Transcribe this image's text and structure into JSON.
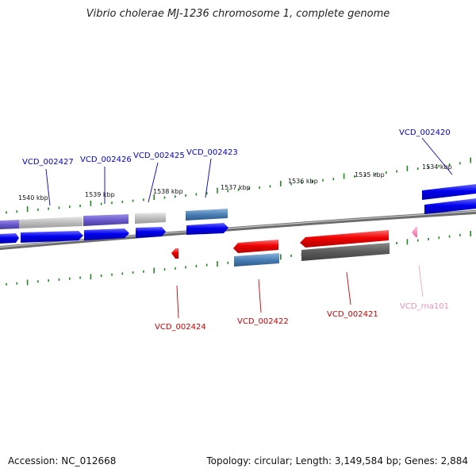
{
  "title": "Vibrio cholerae MJ-1236 chromosome 1, complete genome",
  "footer": {
    "accession": "Accession: NC_012668",
    "stats": "Topology: circular; Length: 3,149,584 bp; Genes: 2,884"
  },
  "tick_labels": [
    "1540 kbp",
    "1539 kbp",
    "1538 kbp",
    "1537 kbp",
    "1536 kbp",
    "1535 kbp",
    "1534 kbp"
  ],
  "gene_labels": {
    "top": [
      "VCD_002427",
      "VCD_002426",
      "VCD_002425",
      "VCD_002423",
      "VCD_002420"
    ],
    "bottom": [
      "VCD_002424",
      "VCD_002422",
      "VCD_002421",
      "VCD_rna101"
    ]
  },
  "colors": {
    "forward_cds": "#0000ee",
    "reverse_cds": "#ee0000",
    "rna": "#ff88bb",
    "backbone": "#808080",
    "ticks": "#228822"
  }
}
